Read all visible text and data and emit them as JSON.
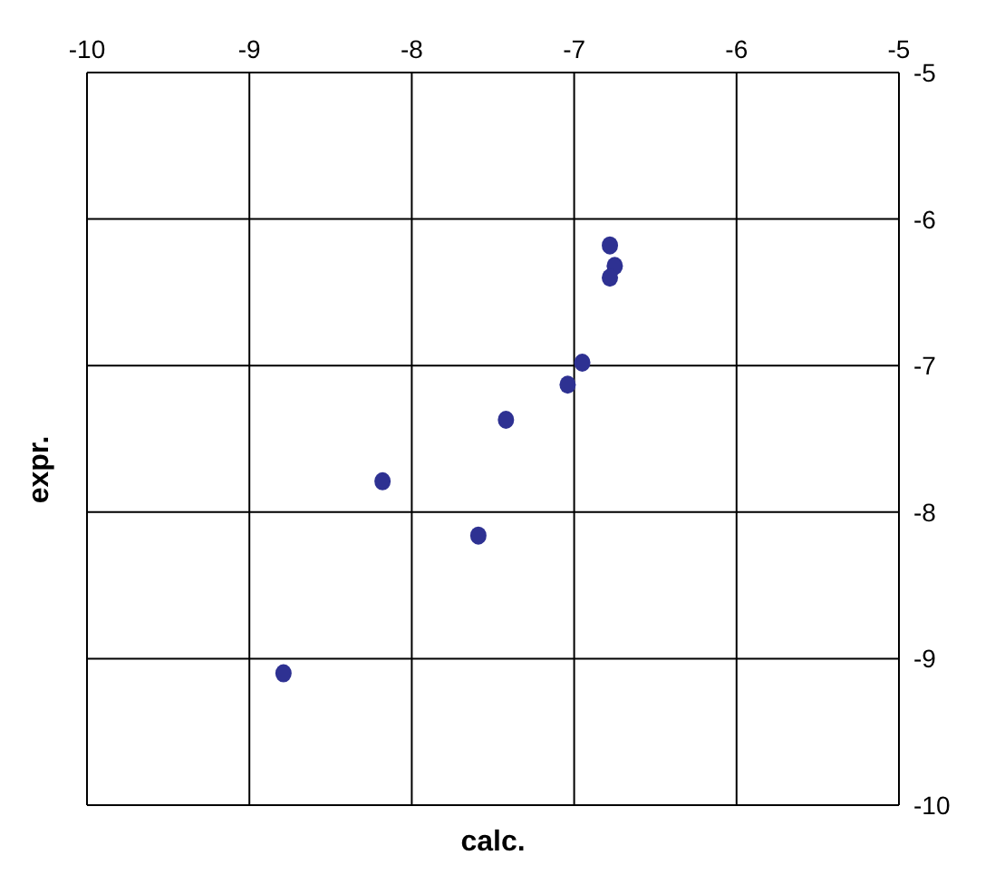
{
  "chart_data": {
    "type": "scatter",
    "xlabel": "calc.",
    "ylabel": "expr.",
    "x": [
      -6.78,
      -6.75,
      -6.78,
      -6.95,
      -7.04,
      -7.42,
      -8.18,
      -7.59,
      -8.79
    ],
    "values": [
      -6.18,
      -6.32,
      -6.4,
      -6.98,
      -7.13,
      -7.37,
      -7.79,
      -8.16,
      -9.1
    ],
    "color": "#2e3192",
    "marker": "circle",
    "grid": true,
    "xlim": [
      -10,
      -5
    ],
    "xticks": [
      -10,
      -9,
      -8,
      -7,
      -6,
      -5
    ],
    "ylim": [
      -10,
      -5
    ],
    "yticks": [
      -10,
      -9,
      -8,
      -7,
      -6,
      -5
    ]
  }
}
